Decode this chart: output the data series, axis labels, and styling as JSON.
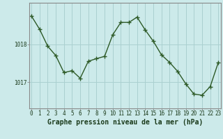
{
  "x": [
    0,
    1,
    2,
    3,
    4,
    5,
    6,
    7,
    8,
    9,
    10,
    11,
    12,
    13,
    14,
    15,
    16,
    17,
    18,
    19,
    20,
    21,
    22,
    23
  ],
  "y": [
    1018.75,
    1018.4,
    1017.95,
    1017.7,
    1017.25,
    1017.3,
    1017.1,
    1017.55,
    1017.62,
    1017.68,
    1018.25,
    1018.58,
    1018.58,
    1018.72,
    1018.38,
    1018.08,
    1017.72,
    1017.52,
    1017.28,
    1016.95,
    1016.68,
    1016.65,
    1016.88,
    1017.52
  ],
  "line_color": "#2d5a27",
  "marker_color": "#2d5a27",
  "bg_color": "#cceaea",
  "grid_color": "#aad0d0",
  "axis_line_color": "#888888",
  "xlabel": "Graphe pression niveau de la mer (hPa)",
  "xlabel_fontsize": 7.0,
  "ylim": [
    1016.3,
    1019.1
  ],
  "yticks": [
    1017,
    1018
  ],
  "xticks": [
    0,
    1,
    2,
    3,
    4,
    5,
    6,
    7,
    8,
    9,
    10,
    11,
    12,
    13,
    14,
    15,
    16,
    17,
    18,
    19,
    20,
    21,
    22,
    23
  ],
  "tick_fontsize": 5.5,
  "line_width": 1.0,
  "marker_size": 4.0
}
